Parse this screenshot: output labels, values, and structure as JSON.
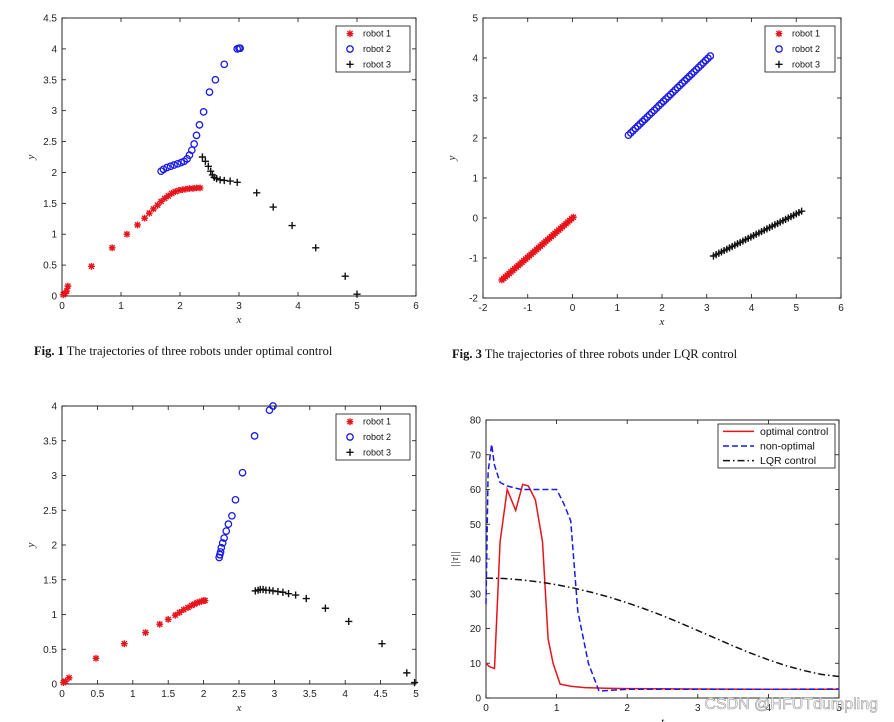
{
  "chart_data": [
    {
      "id": "fig1",
      "type": "scatter",
      "caption_label": "Fig. 1",
      "caption_text": "The trajectories of three robots under optimal control",
      "xlabel": "x",
      "ylabel": "y",
      "xlim": [
        0,
        6
      ],
      "ylim": [
        0,
        4.5
      ],
      "xticks": [
        "0",
        "1",
        "2",
        "3",
        "4",
        "5",
        "6"
      ],
      "yticks": [
        "0",
        "0.5",
        "1",
        "1.5",
        "2",
        "2.5",
        "3",
        "3.5",
        "4",
        "4.5"
      ],
      "legend": [
        "robot 1",
        "robot 2",
        "robot 3"
      ],
      "series": [
        {
          "name": "robot 1",
          "marker": "star",
          "color": "#e8141b",
          "x": [
            0.02,
            0.05,
            0.08,
            0.1,
            0.5,
            0.85,
            1.1,
            1.28,
            1.4,
            1.48,
            1.55,
            1.62,
            1.68,
            1.74,
            1.8,
            1.86,
            1.92,
            1.98,
            2.04,
            2.1,
            2.16,
            2.22,
            2.28,
            2.34
          ],
          "y": [
            0.02,
            0.04,
            0.08,
            0.16,
            0.48,
            0.78,
            1.0,
            1.15,
            1.26,
            1.34,
            1.41,
            1.47,
            1.53,
            1.58,
            1.62,
            1.66,
            1.69,
            1.71,
            1.72,
            1.73,
            1.74,
            1.74,
            1.75,
            1.75
          ]
        },
        {
          "name": "robot 2",
          "marker": "circle",
          "color": "#1a1ae6",
          "x": [
            1.68,
            1.72,
            1.78,
            1.84,
            1.9,
            1.96,
            2.02,
            2.07,
            2.12,
            2.16,
            2.2,
            2.24,
            2.28,
            2.33,
            2.4,
            2.5,
            2.6,
            2.75,
            2.97,
            3.0,
            3.02
          ],
          "y": [
            2.02,
            2.05,
            2.08,
            2.1,
            2.12,
            2.14,
            2.16,
            2.18,
            2.22,
            2.28,
            2.36,
            2.46,
            2.6,
            2.77,
            2.98,
            3.3,
            3.5,
            3.75,
            4.0,
            4.01,
            4.01
          ]
        },
        {
          "name": "robot 3",
          "marker": "plus",
          "color": "#111111",
          "x": [
            2.38,
            2.43,
            2.48,
            2.52,
            2.55,
            2.58,
            2.62,
            2.68,
            2.75,
            2.85,
            2.97,
            3.3,
            3.58,
            3.9,
            4.3,
            4.8,
            5.0
          ],
          "y": [
            2.25,
            2.18,
            2.1,
            2.02,
            1.96,
            1.92,
            1.9,
            1.88,
            1.87,
            1.86,
            1.84,
            1.67,
            1.44,
            1.14,
            0.78,
            0.32,
            0.03
          ]
        }
      ]
    },
    {
      "id": "fig3",
      "type": "scatter",
      "caption_label": "Fig. 3",
      "caption_text": "The trajectories of three robots under LQR control",
      "xlabel": "x",
      "ylabel": "y",
      "xlim": [
        -2,
        6
      ],
      "ylim": [
        -2,
        5
      ],
      "xticks": [
        "-2",
        "-1",
        "0",
        "1",
        "2",
        "3",
        "4",
        "5",
        "6"
      ],
      "yticks": [
        "-2",
        "-1",
        "0",
        "1",
        "2",
        "3",
        "4",
        "5"
      ],
      "legend": [
        "robot 1",
        "robot 2",
        "robot 3"
      ],
      "series": [
        {
          "name": "robot 1",
          "marker": "star",
          "color": "#e8141b",
          "line_from": [
            -1.58,
            -1.55
          ],
          "line_to": [
            0.02,
            0.02
          ],
          "count": 40
        },
        {
          "name": "robot 2",
          "marker": "circle",
          "color": "#1a1ae6",
          "line_from": [
            1.25,
            2.07
          ],
          "line_to": [
            3.08,
            4.05
          ],
          "count": 36
        },
        {
          "name": "robot 3",
          "marker": "plus",
          "color": "#111111",
          "line_from": [
            3.15,
            -0.95
          ],
          "line_to": [
            5.12,
            0.17
          ],
          "count": 34
        }
      ]
    },
    {
      "id": "fig2",
      "type": "scatter",
      "caption_label": "",
      "caption_text": "",
      "xlabel": "x",
      "ylabel": "y",
      "xlim": [
        0,
        5
      ],
      "ylim": [
        0,
        4
      ],
      "xticks": [
        "0",
        "0.5",
        "1",
        "1.5",
        "2",
        "2.5",
        "3",
        "3.5",
        "4",
        "4.5",
        "5"
      ],
      "yticks": [
        "0",
        "0.5",
        "1",
        "1.5",
        "2",
        "2.5",
        "3",
        "3.5",
        "4"
      ],
      "legend": [
        "robot 1",
        "robot 2",
        "robot 3"
      ],
      "series": [
        {
          "name": "robot 1",
          "marker": "star",
          "color": "#e8141b",
          "x": [
            0.02,
            0.05,
            0.1,
            0.48,
            0.88,
            1.18,
            1.38,
            1.5,
            1.6,
            1.66,
            1.72,
            1.78,
            1.83,
            1.87,
            1.91,
            1.94,
            1.97,
            2.0,
            2.02
          ],
          "y": [
            0.02,
            0.04,
            0.09,
            0.37,
            0.58,
            0.74,
            0.86,
            0.93,
            0.99,
            1.03,
            1.07,
            1.1,
            1.13,
            1.15,
            1.17,
            1.18,
            1.19,
            1.2,
            1.2
          ]
        },
        {
          "name": "robot 2",
          "marker": "circle",
          "color": "#1a1ae6",
          "x": [
            2.22,
            2.23,
            2.24,
            2.25,
            2.27,
            2.29,
            2.32,
            2.35,
            2.4,
            2.45,
            2.55,
            2.72,
            2.93,
            2.98
          ],
          "y": [
            1.82,
            1.86,
            1.9,
            1.96,
            2.03,
            2.1,
            2.2,
            2.3,
            2.42,
            2.65,
            3.04,
            3.57,
            3.94,
            4.0
          ]
        },
        {
          "name": "robot 3",
          "marker": "plus",
          "color": "#111111",
          "x": [
            2.73,
            2.77,
            2.8,
            2.84,
            2.88,
            2.93,
            2.98,
            3.05,
            3.12,
            3.2,
            3.3,
            3.45,
            3.72,
            4.05,
            4.52,
            4.87,
            4.98
          ],
          "y": [
            1.34,
            1.35,
            1.36,
            1.36,
            1.35,
            1.35,
            1.34,
            1.33,
            1.32,
            1.3,
            1.28,
            1.23,
            1.09,
            0.9,
            0.58,
            0.16,
            0.02
          ]
        }
      ]
    },
    {
      "id": "fig4",
      "type": "line",
      "caption_label": "",
      "caption_text": "",
      "xlabel": "t",
      "ylabel": "||τ||",
      "xlim": [
        0,
        5
      ],
      "ylim": [
        0,
        80
      ],
      "xticks": [
        "0",
        "1",
        "2",
        "3",
        "4",
        "5"
      ],
      "yticks": [
        "0",
        "10",
        "20",
        "30",
        "40",
        "50",
        "60",
        "70",
        "80"
      ],
      "legend": [
        "optimal control",
        "non-optimal",
        "LQR control"
      ],
      "series": [
        {
          "name": "optimal control",
          "style": "solid",
          "color": "#e8141b",
          "x": [
            0,
            0.05,
            0.12,
            0.2,
            0.3,
            0.42,
            0.52,
            0.6,
            0.7,
            0.8,
            0.88,
            0.95,
            1.05,
            1.2,
            1.4,
            1.7,
            2.0,
            3.0,
            4.0,
            5.0
          ],
          "y": [
            10,
            9,
            8.5,
            45,
            60,
            54,
            61.5,
            61,
            57,
            45,
            17,
            10,
            4,
            3.4,
            3.0,
            2.8,
            2.7,
            2.6,
            2.5,
            2.5
          ]
        },
        {
          "name": "non-optimal",
          "style": "dashed",
          "color": "#1a1ae6",
          "x": [
            0,
            0.03,
            0.08,
            0.12,
            0.2,
            0.3,
            0.5,
            0.8,
            1.0,
            1.1,
            1.2,
            1.3,
            1.45,
            1.6,
            2.0,
            3.0,
            4.0,
            5.0
          ],
          "y": [
            27,
            65,
            73,
            67,
            62,
            61,
            60,
            60,
            60,
            56,
            51,
            25,
            10,
            2,
            2.5,
            2.5,
            2.5,
            2.6
          ]
        },
        {
          "name": "LQR control",
          "style": "dashdot",
          "color": "#111111",
          "x": [
            0,
            0.25,
            0.5,
            0.75,
            1.0,
            1.25,
            1.5,
            1.75,
            2.0,
            2.25,
            2.5,
            2.75,
            3.0,
            3.25,
            3.5,
            3.75,
            4.0,
            4.25,
            4.5,
            4.75,
            5.0
          ],
          "y": [
            34.5,
            34.4,
            34.0,
            33.4,
            32.6,
            31.6,
            30.4,
            29.0,
            27.4,
            25.6,
            23.7,
            21.6,
            19.4,
            17.2,
            15.0,
            12.9,
            11.0,
            9.3,
            7.9,
            6.8,
            6.2
          ]
        }
      ]
    }
  ],
  "watermark": "CSDN @HFUTdumpling"
}
